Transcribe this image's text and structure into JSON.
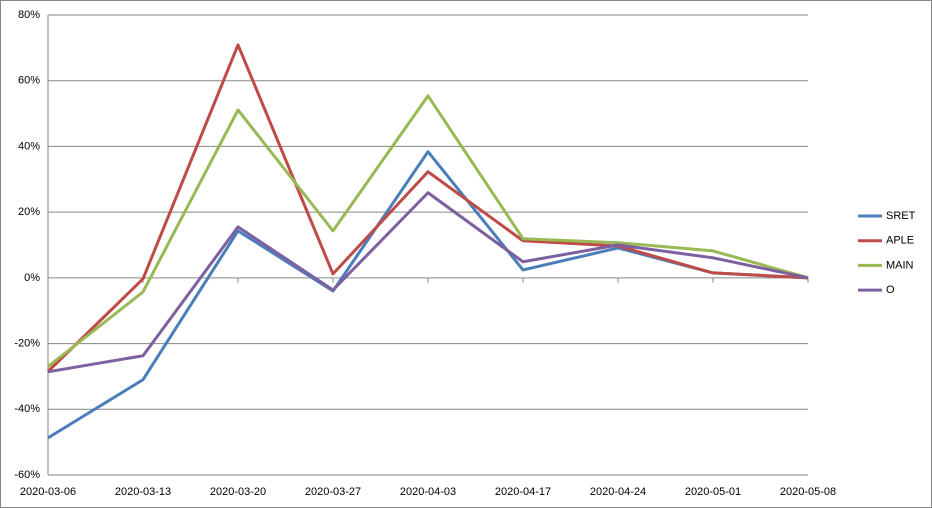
{
  "chart_data": {
    "type": "line",
    "categories": [
      "2020-03-06",
      "2020-03-13",
      "2020-03-20",
      "2020-03-27",
      "2020-04-03",
      "2020-04-17",
      "2020-04-24",
      "2020-05-01",
      "2020-05-08"
    ],
    "series": [
      {
        "name": "SRET",
        "color": "#4a7ebb",
        "values": [
          -48.7,
          -31,
          14.3,
          -4,
          38.4,
          2.4,
          9.1,
          1.5,
          0
        ]
      },
      {
        "name": "APLE",
        "color": "#be4b48",
        "values": [
          -28.5,
          -0.3,
          70.9,
          1.2,
          32.3,
          11.3,
          9.7,
          1.5,
          0
        ]
      },
      {
        "name": "MAIN",
        "color": "#98b954",
        "values": [
          -27,
          -4.3,
          51.1,
          14.3,
          55.4,
          11.9,
          10.7,
          8.2,
          0
        ]
      },
      {
        "name": "O",
        "color": "#7d60a0",
        "values": [
          -28.6,
          -23.7,
          15.5,
          -3.7,
          25.9,
          4.9,
          10,
          6.1,
          0
        ]
      }
    ],
    "ylim": [
      -60,
      80
    ],
    "yticks": [
      {
        "value": -60,
        "label": "-60%"
      },
      {
        "value": -40,
        "label": "-40%"
      },
      {
        "value": -20,
        "label": "-20%"
      },
      {
        "value": 0,
        "label": "0%"
      },
      {
        "value": 20,
        "label": "20%"
      },
      {
        "value": 40,
        "label": "40%"
      },
      {
        "value": 60,
        "label": "60%"
      },
      {
        "value": 80,
        "label": "80%"
      }
    ],
    "grid": true,
    "legend": "right"
  }
}
